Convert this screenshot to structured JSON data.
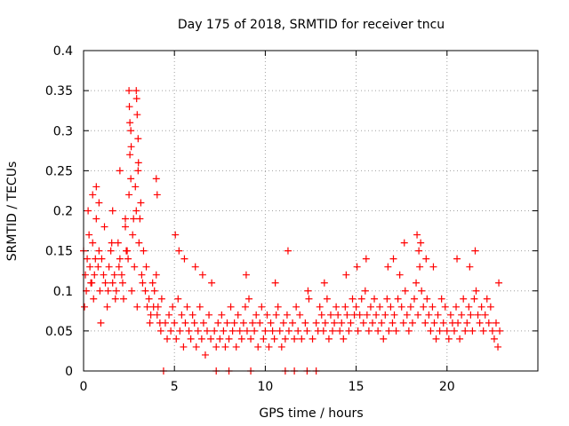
{
  "chart_data": {
    "type": "scatter",
    "title": "Day 175 of 2018, SRMTID for receiver tncu",
    "xlabel": "GPS time / hours",
    "ylabel": "SRMTID / TECUs",
    "xlim": [
      0,
      25
    ],
    "ylim": [
      0,
      0.4
    ],
    "xticks": [
      0,
      5,
      10,
      15,
      20
    ],
    "xtick_labels": [
      "0",
      "5",
      "10",
      "15",
      "20"
    ],
    "yticks": [
      0,
      0.05,
      0.1,
      0.15,
      0.2,
      0.25,
      0.3,
      0.35,
      0.4
    ],
    "ytick_labels": [
      "0",
      "0.05",
      "0.1",
      "0.15",
      "0.2",
      "0.25",
      "0.3",
      "0.35",
      "0.4"
    ],
    "grid": true,
    "marker": "plus",
    "color": "#ff0000",
    "series": [
      {
        "x": [
          0.0,
          0.1,
          0.15,
          0.2,
          0.3,
          0.35,
          0.4,
          0.5,
          0.55,
          0.6,
          0.7,
          0.8,
          0.85,
          0.9,
          1.0,
          1.1,
          1.2,
          1.3,
          1.4,
          1.5,
          1.6,
          1.7,
          1.8,
          1.9,
          2.0,
          2.1,
          2.2,
          2.3,
          2.4,
          2.5,
          2.55,
          2.6,
          2.7,
          2.8,
          2.9,
          3.0,
          3.1,
          3.2,
          3.3,
          3.4,
          3.5,
          3.6,
          3.7,
          3.8,
          3.9,
          4.0,
          4.1,
          4.2,
          4.3,
          0.05,
          0.25,
          0.45,
          0.65,
          0.95,
          1.15,
          1.35,
          1.55,
          1.75,
          1.95,
          2.15,
          2.35,
          2.45,
          2.65,
          2.75,
          2.85,
          2.95,
          3.05,
          3.15,
          3.25,
          3.45,
          3.65,
          3.85,
          4.05,
          4.25,
          2.5,
          2.52,
          2.55,
          2.6,
          2.62,
          2.9,
          2.92,
          2.95,
          3.0,
          3.02,
          4.0,
          4.05,
          0.5,
          0.7,
          0.85,
          1.6,
          2.0,
          2.3
        ],
        "y": [
          0.15,
          0.12,
          0.1,
          0.14,
          0.17,
          0.13,
          0.11,
          0.16,
          0.09,
          0.12,
          0.19,
          0.13,
          0.15,
          0.1,
          0.14,
          0.12,
          0.11,
          0.08,
          0.13,
          0.15,
          0.11,
          0.12,
          0.1,
          0.16,
          0.14,
          0.12,
          0.09,
          0.18,
          0.15,
          0.22,
          0.27,
          0.24,
          0.17,
          0.13,
          0.2,
          0.25,
          0.19,
          0.12,
          0.15,
          0.1,
          0.08,
          0.09,
          0.07,
          0.11,
          0.1,
          0.12,
          0.08,
          0.06,
          0.09,
          0.08,
          0.2,
          0.11,
          0.14,
          0.06,
          0.18,
          0.1,
          0.16,
          0.09,
          0.13,
          0.11,
          0.15,
          0.14,
          0.1,
          0.19,
          0.23,
          0.08,
          0.16,
          0.21,
          0.11,
          0.13,
          0.06,
          0.08,
          0.07,
          0.05,
          0.35,
          0.33,
          0.31,
          0.3,
          0.28,
          0.35,
          0.34,
          0.32,
          0.29,
          0.26,
          0.24,
          0.22,
          0.22,
          0.23,
          0.21,
          0.2,
          0.25,
          0.19
        ],
        "name": ""
      },
      {
        "x": [
          4.5,
          4.6,
          4.7,
          4.8,
          4.9,
          5.0,
          5.1,
          5.2,
          5.3,
          5.4,
          5.5,
          5.6,
          5.7,
          5.8,
          5.9,
          6.0,
          6.1,
          6.2,
          6.3,
          6.4,
          6.5,
          6.6,
          6.7,
          6.8,
          6.9,
          7.0,
          7.2,
          7.3,
          7.4,
          7.5,
          7.6,
          7.7,
          7.8,
          7.9,
          8.0,
          8.1,
          8.2,
          8.3,
          8.4,
          8.5,
          8.6,
          8.7,
          8.8,
          8.9,
          9.0,
          9.1,
          9.2,
          9.3,
          9.4,
          9.5,
          9.6,
          9.7,
          9.8,
          9.9,
          10.0,
          10.1,
          10.2,
          10.3,
          10.4,
          10.5,
          10.6,
          10.7,
          10.8,
          10.9,
          11.0,
          11.1,
          11.2,
          11.3,
          11.5,
          11.6,
          11.7,
          11.8,
          11.9,
          12.0,
          12.2,
          12.3,
          12.4,
          12.6,
          12.8,
          12.9,
          13.0,
          13.1,
          13.2,
          13.3,
          13.4,
          13.5,
          13.6,
          13.7,
          13.8,
          13.9,
          14.0,
          14.1,
          14.2,
          14.3,
          14.4,
          14.5,
          14.6,
          14.7,
          14.8,
          14.9,
          15.0,
          15.1,
          15.2,
          15.3,
          15.4,
          15.5,
          15.6,
          15.7,
          15.8,
          15.9,
          16.0,
          16.1,
          16.2,
          16.3,
          16.4,
          16.5,
          16.6,
          16.7,
          16.8,
          16.9,
          17.0,
          17.1,
          17.2,
          17.3,
          17.4,
          17.5,
          17.6,
          17.7,
          17.8,
          17.9,
          18.0,
          18.1,
          18.2,
          18.3,
          18.4,
          18.5,
          18.6,
          18.7,
          18.8,
          18.9,
          19.0,
          19.1,
          19.2,
          19.3,
          19.4,
          19.5,
          19.6,
          19.7,
          19.8,
          19.9,
          20.0,
          20.1,
          20.2,
          20.3,
          20.4,
          20.5,
          20.6,
          20.7,
          20.8,
          20.9,
          21.0,
          21.1,
          21.2,
          21.3,
          21.4,
          21.5,
          21.6,
          21.7,
          21.8,
          21.9,
          22.0,
          22.1,
          22.2,
          22.3,
          22.4,
          22.5,
          22.6,
          22.7,
          22.8,
          22.9,
          5.05,
          5.25,
          5.55,
          6.15,
          6.55,
          7.05,
          8.95,
          10.55,
          11.25,
          12.35,
          13.25,
          14.45,
          15.05,
          15.55,
          16.75,
          17.05,
          17.65,
          18.35,
          18.45,
          18.55,
          18.85,
          19.25,
          20.55,
          21.25,
          21.55,
          22.85
        ],
        "y": [
          0.06,
          0.04,
          0.07,
          0.05,
          0.08,
          0.06,
          0.04,
          0.09,
          0.05,
          0.07,
          0.03,
          0.06,
          0.08,
          0.05,
          0.04,
          0.07,
          0.06,
          0.03,
          0.05,
          0.08,
          0.04,
          0.06,
          0.02,
          0.05,
          0.07,
          0.04,
          0.05,
          0.03,
          0.06,
          0.04,
          0.07,
          0.05,
          0.03,
          0.06,
          0.04,
          0.08,
          0.05,
          0.06,
          0.03,
          0.07,
          0.05,
          0.04,
          0.06,
          0.08,
          0.05,
          0.09,
          0.04,
          0.06,
          0.05,
          0.07,
          0.03,
          0.06,
          0.08,
          0.04,
          0.05,
          0.07,
          0.03,
          0.06,
          0.05,
          0.04,
          0.07,
          0.08,
          0.05,
          0.03,
          0.06,
          0.04,
          0.07,
          0.05,
          0.06,
          0.04,
          0.08,
          0.05,
          0.07,
          0.04,
          0.06,
          0.05,
          0.09,
          0.04,
          0.06,
          0.05,
          0.08,
          0.07,
          0.05,
          0.06,
          0.09,
          0.04,
          0.07,
          0.05,
          0.06,
          0.08,
          0.07,
          0.05,
          0.06,
          0.04,
          0.08,
          0.07,
          0.05,
          0.06,
          0.09,
          0.07,
          0.08,
          0.05,
          0.07,
          0.09,
          0.06,
          0.1,
          0.07,
          0.05,
          0.08,
          0.06,
          0.09,
          0.07,
          0.05,
          0.08,
          0.06,
          0.04,
          0.07,
          0.09,
          0.05,
          0.08,
          0.06,
          0.07,
          0.05,
          0.09,
          0.12,
          0.08,
          0.06,
          0.1,
          0.07,
          0.05,
          0.08,
          0.06,
          0.09,
          0.11,
          0.07,
          0.13,
          0.1,
          0.08,
          0.06,
          0.09,
          0.07,
          0.05,
          0.08,
          0.06,
          0.04,
          0.07,
          0.05,
          0.09,
          0.06,
          0.08,
          0.05,
          0.04,
          0.07,
          0.06,
          0.05,
          0.08,
          0.06,
          0.04,
          0.07,
          0.09,
          0.05,
          0.06,
          0.08,
          0.07,
          0.05,
          0.09,
          0.1,
          0.07,
          0.06,
          0.08,
          0.05,
          0.07,
          0.09,
          0.06,
          0.08,
          0.05,
          0.04,
          0.06,
          0.03,
          0.05,
          0.17,
          0.15,
          0.14,
          0.13,
          0.12,
          0.11,
          0.12,
          0.11,
          0.15,
          0.1,
          0.11,
          0.12,
          0.13,
          0.14,
          0.13,
          0.14,
          0.16,
          0.17,
          0.15,
          0.16,
          0.14,
          0.13,
          0.14,
          0.13,
          0.15,
          0.11
        ],
        "name": ""
      },
      {
        "x": [
          4.4,
          7.3,
          8.0,
          9.2,
          11.1,
          11.6,
          12.3,
          12.8
        ],
        "y": [
          0,
          0,
          0,
          0,
          0,
          0,
          0,
          0
        ],
        "name": ""
      }
    ]
  }
}
